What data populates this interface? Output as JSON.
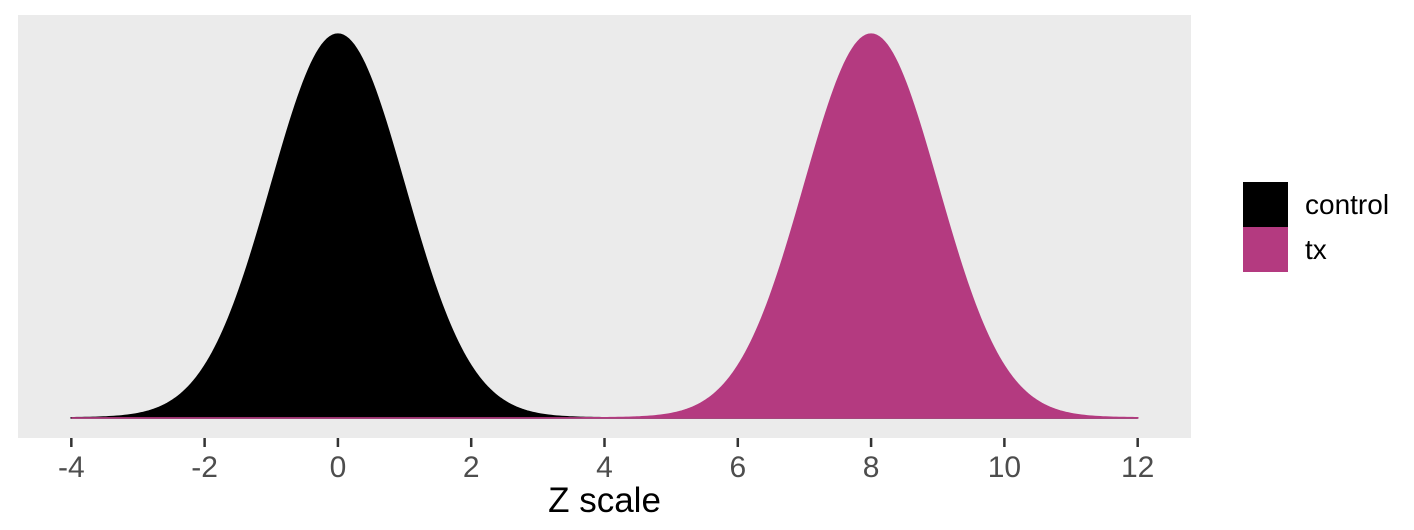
{
  "figure": {
    "panel_bg": "#EBEBEB",
    "page_bg": "#FFFFFF",
    "tick_mark_color": "#333333",
    "tick_label_color": "#4D4D4D",
    "axis_title_color": "#000000"
  },
  "legend": {
    "position": "right",
    "items": [
      {
        "label": "control",
        "color": "#000000"
      },
      {
        "label": "tx",
        "color": "#B43A80"
      }
    ]
  },
  "chart_data": {
    "type": "area",
    "subtype": "density",
    "title": "",
    "xlabel": "Z scale",
    "ylabel": "",
    "x_ticks": [
      "-4",
      "-2",
      "0",
      "2",
      "4",
      "6",
      "8",
      "10",
      "12"
    ],
    "x_tick_values": [
      -4,
      -2,
      0,
      2,
      4,
      6,
      8,
      10,
      12
    ],
    "x_range_panel": [
      -4.8,
      12.8
    ],
    "y_range_panel": [
      -0.0209,
      0.4188
    ],
    "curve_domain": [
      -4,
      12
    ],
    "grid": false,
    "y_axis_visible": false,
    "legend_position": "right",
    "series": [
      {
        "name": "control",
        "distribution": "normal",
        "mean": 0,
        "sd": 1,
        "peak_density": 0.3989,
        "color": "#000000"
      },
      {
        "name": "tx",
        "distribution": "normal",
        "mean": 8,
        "sd": 1,
        "peak_density": 0.3989,
        "color": "#B43A80"
      }
    ]
  }
}
